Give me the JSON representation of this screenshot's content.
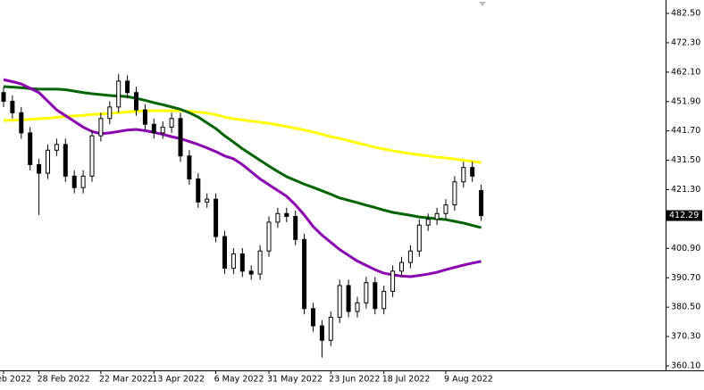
{
  "chart_data": {
    "type": "candlestick",
    "categories": [
      "eb 2022",
      null,
      null,
      null,
      "28 Feb 2022",
      null,
      null,
      null,
      null,
      null,
      null,
      "22 Mar 2022",
      null,
      null,
      null,
      null,
      null,
      "13 Apr 2022",
      null,
      null,
      null,
      null,
      null,
      null,
      "6 May 2022",
      null,
      null,
      null,
      null,
      null,
      "31 May 2022",
      null,
      null,
      null,
      null,
      null,
      null,
      "23 Jun 2022",
      null,
      null,
      null,
      null,
      null,
      "18 Jul 2022",
      null,
      null,
      null,
      null,
      null,
      null,
      "9 Aug 2022",
      null,
      null,
      null,
      null
    ],
    "open": [
      455,
      452,
      448,
      441,
      430,
      427,
      435,
      437,
      426,
      422,
      426,
      440,
      446,
      450,
      459,
      455,
      449,
      444,
      441,
      443,
      446,
      433,
      425,
      417,
      418,
      405,
      394,
      399,
      393,
      392,
      400,
      410,
      413,
      412,
      404,
      380,
      374,
      369,
      377,
      388,
      379,
      382,
      389,
      380,
      386,
      393,
      396,
      400,
      409,
      411,
      413,
      416,
      424,
      429,
      421
    ],
    "high": [
      457,
      454,
      450,
      443,
      432,
      437,
      439,
      439,
      428,
      428,
      442,
      448,
      452,
      461.5,
      461,
      457,
      451,
      446,
      445,
      448,
      448,
      435,
      427,
      420,
      420,
      407,
      401,
      401,
      395,
      402,
      412,
      415,
      415,
      414,
      406,
      382,
      376,
      379,
      390,
      390,
      384,
      391,
      391,
      388,
      395,
      398,
      402,
      411,
      413,
      415,
      418,
      426,
      431,
      431,
      423
    ],
    "low": [
      450,
      446,
      439,
      428,
      412.5,
      425,
      433,
      424,
      420,
      420,
      424,
      438,
      444,
      448,
      453,
      447,
      442,
      439,
      439,
      441,
      431,
      423,
      415,
      415,
      403,
      392,
      392,
      391,
      390,
      390,
      398,
      408,
      410,
      402,
      378,
      372,
      363,
      367,
      375,
      377,
      377,
      380,
      378,
      378,
      384,
      391,
      394,
      398,
      407,
      409,
      411,
      414,
      422,
      424,
      410.5
    ],
    "close": [
      452,
      448,
      441,
      430,
      427,
      435,
      437,
      426,
      422,
      426,
      440,
      446,
      450,
      459,
      455,
      449,
      444,
      441,
      443,
      446,
      433,
      425,
      417,
      418,
      405,
      394,
      399,
      393,
      392,
      400,
      410,
      413,
      412,
      404,
      380,
      374,
      369,
      377,
      388,
      379,
      382,
      389,
      380,
      386,
      393,
      396,
      400,
      409,
      411,
      413,
      416,
      424,
      429,
      426,
      412.29
    ],
    "up_color": "#ffffff",
    "down_color": "#000000",
    "moving_averages": [
      {
        "color": "#ffff00",
        "values": [
          445.3,
          445.4,
          445.5,
          445.7,
          445.9,
          446.1,
          446.4,
          446.7,
          446.9,
          447.1,
          447.4,
          447.6,
          447.8,
          448,
          448.3,
          448.5,
          448.7,
          448.7,
          448.7,
          448.7,
          448.7,
          448.5,
          448.2,
          447.9,
          447.3,
          446.5,
          445.9,
          445.5,
          445.1,
          444.7,
          444.3,
          443.8,
          443.2,
          442.6,
          442,
          441.3,
          440.5,
          439.7,
          439.1,
          438.3,
          437.5,
          436.8,
          436,
          435.4,
          434.8,
          434.3,
          433.8,
          433.4,
          433,
          432.6,
          432.3,
          431.9,
          431.5,
          431.1,
          430.7
        ]
      },
      {
        "color": "#006400",
        "values": [
          457.1,
          456.9,
          456.7,
          456.4,
          456.2,
          456.2,
          456.2,
          456,
          455.5,
          455,
          454.6,
          454.3,
          454,
          453.8,
          453.6,
          453,
          452.3,
          451.5,
          450.8,
          450,
          449.2,
          448,
          446.5,
          444.5,
          442.5,
          440,
          437.8,
          435.5,
          433.5,
          431.5,
          429.5,
          427.6,
          425.8,
          424.5,
          423.2,
          422.1,
          420.9,
          419.7,
          418.4,
          417.6,
          416.8,
          415.9,
          415.1,
          414.2,
          413.4,
          412.9,
          412.4,
          411.8,
          411.5,
          411.2,
          410.9,
          410.3,
          409.7,
          408.9,
          408.1
        ]
      },
      {
        "color": "#8b00b0",
        "values": [
          459.5,
          458.8,
          458,
          456.5,
          455,
          452,
          449,
          447,
          445,
          443,
          441.5,
          440.7,
          441,
          441.5,
          442,
          442.2,
          441.8,
          441.2,
          440.5,
          439.7,
          439,
          438,
          437,
          435.8,
          434.5,
          433,
          432,
          430,
          427.5,
          425,
          423,
          421,
          419,
          416,
          412.5,
          408.5,
          405.5,
          403,
          400.5,
          398.5,
          396.5,
          395,
          393.5,
          392.3,
          391.7,
          391.3,
          391.1,
          391.5,
          392,
          392.6,
          393.5,
          394.3,
          395.1,
          395.8,
          396.4
        ]
      }
    ],
    "ylim": [
      358.55,
      487.15
    ],
    "yticks": [
      {
        "value": 482.5,
        "label": "482.50"
      },
      {
        "value": 472.3,
        "label": "472.30"
      },
      {
        "value": 462.1,
        "label": "462.10"
      },
      {
        "value": 451.9,
        "label": "451.90"
      },
      {
        "value": 441.7,
        "label": "441.70"
      },
      {
        "value": 431.5,
        "label": "431.50"
      },
      {
        "value": 421.3,
        "label": "421.30"
      },
      {
        "value": 400.9,
        "label": "400.90"
      },
      {
        "value": 390.7,
        "label": "390.70"
      },
      {
        "value": 380.5,
        "label": "380.50"
      },
      {
        "value": 370.3,
        "label": "370.30"
      },
      {
        "value": 360.1,
        "label": "360.10"
      }
    ],
    "current_price": {
      "value": 412.29,
      "label": "412.29"
    }
  }
}
